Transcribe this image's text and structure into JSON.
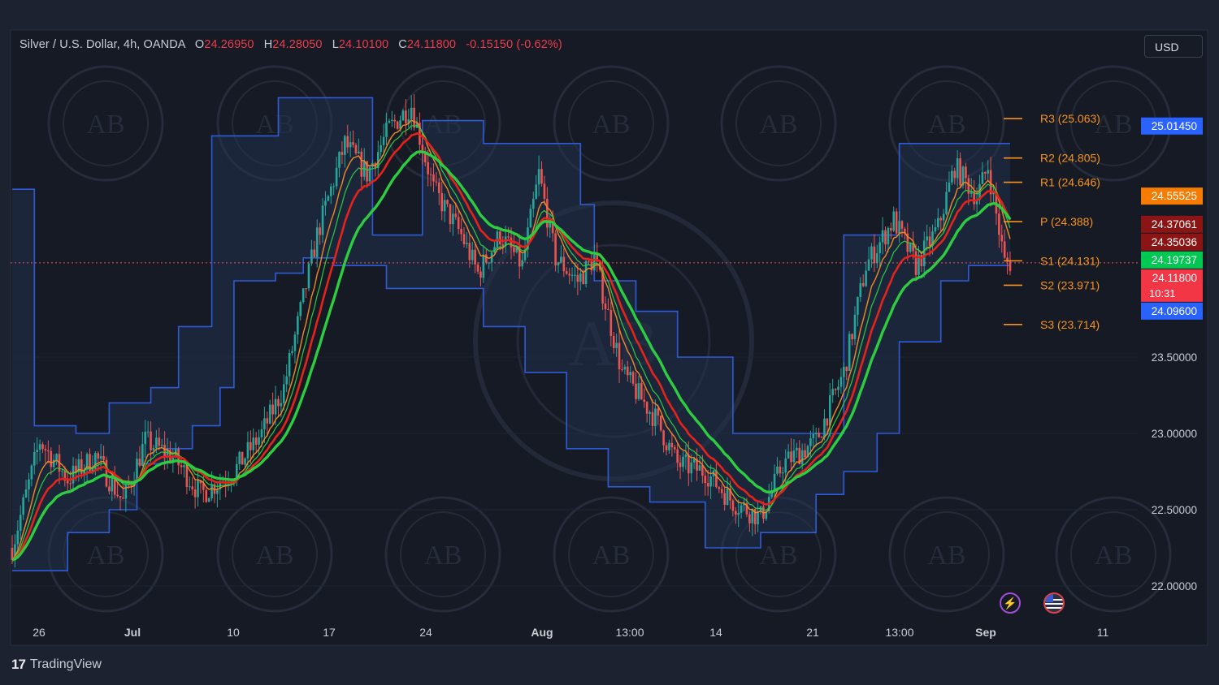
{
  "header": {
    "symbol": "Silver / U.S. Dollar, 4h, OANDA",
    "o_label": "O",
    "o_value": "24.26950",
    "h_label": "H",
    "h_value": "24.28050",
    "l_label": "L",
    "l_value": "24.10100",
    "c_label": "C",
    "c_value": "24.11800",
    "change": "-0.15150 (-0.62%)"
  },
  "currency_button": "USD",
  "branding": {
    "logo": "17",
    "name": "TradingView"
  },
  "watermark": "AB",
  "colors": {
    "background": "#1c2230",
    "channel_line": "#2f5bd8",
    "channel_fill": "#1f2d45",
    "up_candle": "#26a69a",
    "down_candle": "#ef5350",
    "pivot": "#f7931e",
    "ma_green": "#2ecc40",
    "ma_red": "#e5231b",
    "ma_orange": "#f08a24"
  },
  "chart_data": {
    "type": "candlestick",
    "title": "Silver / U.S. Dollar, 4h, OANDA",
    "x_tick_labels": [
      "26",
      "Jul",
      "10",
      "17",
      "24",
      "Aug",
      "13:00",
      "14",
      "21",
      "13:00",
      "Sep",
      "11"
    ],
    "y_tick_labels": [
      "23.50000",
      "23.00000",
      "22.50000",
      "22.00000"
    ],
    "y_ticks": [
      23.5,
      23.0,
      22.5,
      22.0
    ],
    "ylim": [
      21.92,
      25.6
    ],
    "close_path": [
      [
        0,
        22.25
      ],
      [
        10,
        22.95
      ],
      [
        20,
        22.7
      ],
      [
        30,
        22.85
      ],
      [
        40,
        22.55
      ],
      [
        48,
        22.95
      ],
      [
        58,
        22.85
      ],
      [
        68,
        22.6
      ],
      [
        80,
        22.75
      ],
      [
        90,
        23.0
      ],
      [
        98,
        23.3
      ],
      [
        110,
        24.3
      ],
      [
        120,
        24.9
      ],
      [
        128,
        24.7
      ],
      [
        136,
        25.0
      ],
      [
        144,
        25.15
      ],
      [
        152,
        24.6
      ],
      [
        162,
        24.3
      ],
      [
        168,
        24.05
      ],
      [
        176,
        24.3
      ],
      [
        184,
        24.1
      ],
      [
        190,
        24.7
      ],
      [
        196,
        24.15
      ],
      [
        204,
        24.0
      ],
      [
        210,
        24.15
      ],
      [
        220,
        23.4
      ],
      [
        232,
        23.1
      ],
      [
        240,
        22.8
      ],
      [
        250,
        22.75
      ],
      [
        260,
        22.55
      ],
      [
        270,
        22.45
      ],
      [
        278,
        22.8
      ],
      [
        290,
        22.95
      ],
      [
        300,
        23.4
      ],
      [
        308,
        24.1
      ],
      [
        318,
        24.4
      ],
      [
        326,
        24.1
      ],
      [
        334,
        24.35
      ],
      [
        340,
        24.75
      ],
      [
        348,
        24.55
      ],
      [
        352,
        24.75
      ],
      [
        358,
        24.12
      ]
    ],
    "channel_upper": [
      [
        0,
        24.6
      ],
      [
        8,
        24.6
      ],
      [
        8,
        23.05
      ],
      [
        23,
        23.05
      ],
      [
        23,
        23.0
      ],
      [
        35,
        23.0
      ],
      [
        35,
        23.2
      ],
      [
        50,
        23.2
      ],
      [
        50,
        23.3
      ],
      [
        60,
        23.3
      ],
      [
        60,
        23.7
      ],
      [
        72,
        23.7
      ],
      [
        72,
        24.95
      ],
      [
        96,
        24.95
      ],
      [
        96,
        25.2
      ],
      [
        130,
        25.2
      ],
      [
        130,
        24.3
      ],
      [
        148,
        24.3
      ],
      [
        148,
        25.05
      ],
      [
        170,
        25.05
      ],
      [
        170,
        24.9
      ],
      [
        205,
        24.9
      ],
      [
        205,
        24.5
      ],
      [
        210,
        24.5
      ],
      [
        210,
        24.0
      ],
      [
        225,
        24.0
      ],
      [
        225,
        23.8
      ],
      [
        240,
        23.8
      ],
      [
        240,
        23.5
      ],
      [
        260,
        23.5
      ],
      [
        260,
        23.0
      ],
      [
        280,
        23.0
      ],
      [
        280,
        23.0
      ],
      [
        300,
        23.0
      ],
      [
        300,
        24.3
      ],
      [
        320,
        24.3
      ],
      [
        320,
        24.9
      ],
      [
        345,
        24.9
      ],
      [
        345,
        24.9
      ],
      [
        360,
        24.9
      ]
    ],
    "channel_lower": [
      [
        0,
        22.1
      ],
      [
        20,
        22.1
      ],
      [
        20,
        22.35
      ],
      [
        35,
        22.35
      ],
      [
        35,
        22.5
      ],
      [
        45,
        22.5
      ],
      [
        45,
        22.8
      ],
      [
        55,
        22.8
      ],
      [
        55,
        22.9
      ],
      [
        65,
        22.9
      ],
      [
        65,
        23.05
      ],
      [
        75,
        23.05
      ],
      [
        75,
        23.3
      ],
      [
        80,
        23.3
      ],
      [
        80,
        24.0
      ],
      [
        95,
        24.0
      ],
      [
        95,
        24.05
      ],
      [
        105,
        24.05
      ],
      [
        105,
        24.15
      ],
      [
        116,
        24.15
      ],
      [
        116,
        24.1
      ],
      [
        135,
        24.1
      ],
      [
        135,
        23.95
      ],
      [
        170,
        23.95
      ],
      [
        170,
        23.7
      ],
      [
        185,
        23.7
      ],
      [
        185,
        23.4
      ],
      [
        200,
        23.4
      ],
      [
        200,
        22.9
      ],
      [
        215,
        22.9
      ],
      [
        215,
        22.65
      ],
      [
        230,
        22.65
      ],
      [
        230,
        22.55
      ],
      [
        250,
        22.55
      ],
      [
        250,
        22.25
      ],
      [
        270,
        22.25
      ],
      [
        270,
        22.35
      ],
      [
        290,
        22.35
      ],
      [
        290,
        22.6
      ],
      [
        300,
        22.6
      ],
      [
        300,
        22.75
      ],
      [
        312,
        22.75
      ],
      [
        312,
        23.0
      ],
      [
        320,
        23.0
      ],
      [
        320,
        23.6
      ],
      [
        335,
        23.6
      ],
      [
        335,
        24.0
      ],
      [
        345,
        24.0
      ],
      [
        345,
        24.1
      ],
      [
        360,
        24.1
      ]
    ],
    "pivot_levels": [
      {
        "label": "R3",
        "text": "R3 (25.063)",
        "value": 25.063
      },
      {
        "label": "R2",
        "text": "R2 (24.805)",
        "value": 24.805
      },
      {
        "label": "R1",
        "text": "R1 (24.646)",
        "value": 24.646
      },
      {
        "label": "P",
        "text": "P (24.388)",
        "value": 24.388
      },
      {
        "label": "S1",
        "text": "S1 (24.131)",
        "value": 24.131
      },
      {
        "label": "S2",
        "text": "S2 (23.971)",
        "value": 23.971
      },
      {
        "label": "S3",
        "text": "S3 (23.714)",
        "value": 23.714
      }
    ],
    "price_tags": [
      {
        "text": "25.01450",
        "value": 25.0145,
        "color": "#2962ff"
      },
      {
        "text": "24.55525",
        "value": 24.55525,
        "color": "#f57c00"
      },
      {
        "text": "24.37061",
        "value": 24.37061,
        "color": "#8b1414"
      },
      {
        "text": "24.35036",
        "value": 24.35036,
        "color": "#8b1414"
      },
      {
        "text": "24.19737",
        "value": 24.19737,
        "color": "#00c853"
      },
      {
        "text": "24.11800",
        "sub": "10:31",
        "value": 24.118,
        "color": "#f23645"
      },
      {
        "text": "24.09600",
        "value": 24.096,
        "color": "#2962ff"
      }
    ],
    "current_price": 24.118
  }
}
